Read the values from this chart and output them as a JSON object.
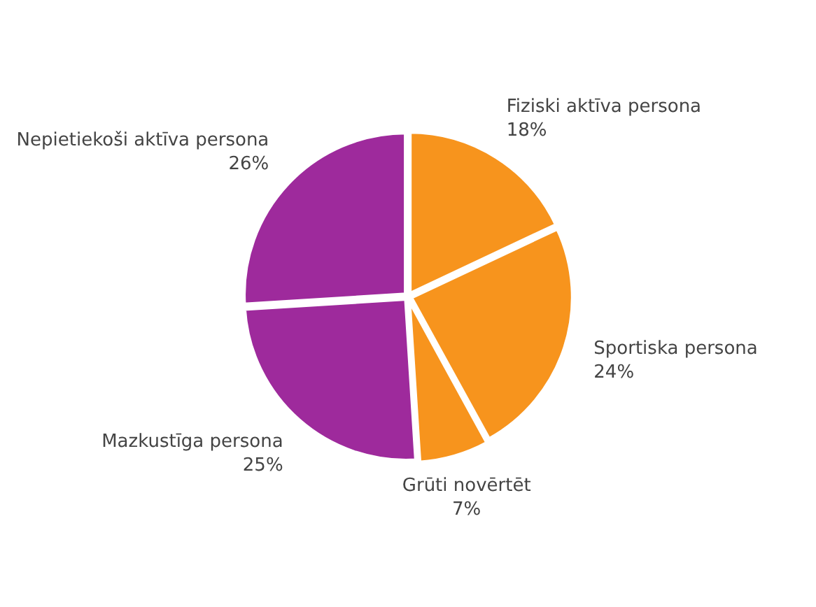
{
  "chart_data": {
    "type": "pie",
    "categories": [
      "Fiziski aktīva persona",
      "Sportiska persona",
      "Grūti novērtēt",
      "Mazkustīga persona",
      "Nepietiekoši aktīva persona"
    ],
    "values": [
      18,
      24,
      7,
      25,
      26
    ],
    "value_labels": [
      "18%",
      "24%",
      "7%",
      "25%",
      "26%"
    ],
    "colors": [
      "#f7941d",
      "#f7941d",
      "#f7941d",
      "#9e2a9c",
      "#9e2a9c"
    ],
    "legend": false
  }
}
